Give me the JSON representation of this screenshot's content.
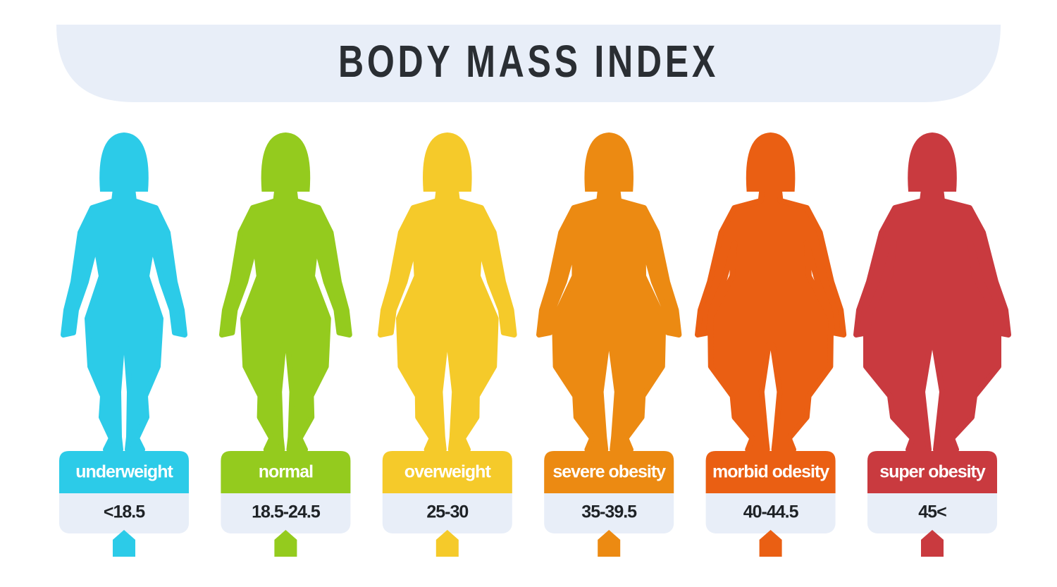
{
  "title": "BODY MASS INDEX",
  "items": [
    {
      "label": "underweight",
      "range": "<18.5",
      "color": "#2ccbe8"
    },
    {
      "label": "normal",
      "range": "18.5-24.5",
      "color": "#94cb1e"
    },
    {
      "label": "overweight",
      "range": "25-30",
      "color": "#f5ca2a"
    },
    {
      "label": "severe obesity",
      "range": "35-39.5",
      "color": "#ec8a12"
    },
    {
      "label": "morbid odesity",
      "range": "40-44.5",
      "color": "#ea5f13"
    },
    {
      "label": "super obesity",
      "range": "45<",
      "color": "#c93a3f"
    }
  ]
}
